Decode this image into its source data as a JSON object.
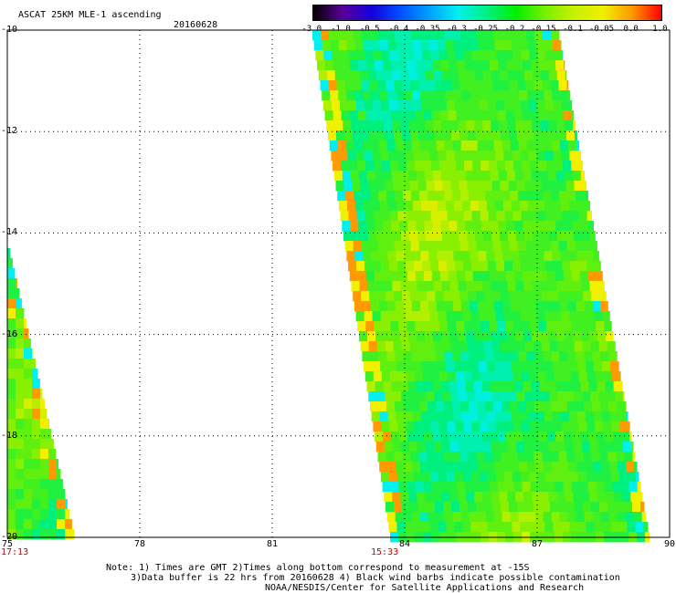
{
  "header": {
    "title": "ASCAT 25KM MLE-1 ascending",
    "date": "20160628"
  },
  "colorbar": {
    "labels": [
      "-3.0",
      "-1.0",
      "-0.5",
      "-0.4",
      "-0.35",
      "-0.3",
      "-0.25",
      "-0.2",
      "-0.15",
      "-0.1",
      "-0.05",
      "0.0",
      "1.0"
    ],
    "colors": [
      "#000000",
      "#5a0096",
      "#1400dc",
      "#0050ff",
      "#00a0ff",
      "#00f0f0",
      "#00f080",
      "#00f000",
      "#78f000",
      "#c8f000",
      "#f0f000",
      "#ff9600",
      "#ff0000"
    ]
  },
  "map": {
    "lon_range": [
      75,
      90
    ],
    "lat_range": [
      -20,
      -10
    ],
    "lon_labels": [
      "75",
      "78",
      "81",
      "84",
      "87",
      "90"
    ],
    "lat_labels": [
      "-10",
      "-12",
      "-14",
      "-16",
      "-18",
      "-20"
    ],
    "swaths": [
      {
        "name": "west",
        "time": "17:13"
      },
      {
        "name": "east",
        "time": "15:33"
      }
    ]
  },
  "notes": [
    "Note: 1) Times are GMT 2)Times along bottom correspond to measurement at -15S",
    "3)Data buffer is 22 hrs from 20160628 4) Black wind barbs indicate possible contamination",
    "NOAA/NESDIS/Center for Satellite Applications and Research"
  ]
}
